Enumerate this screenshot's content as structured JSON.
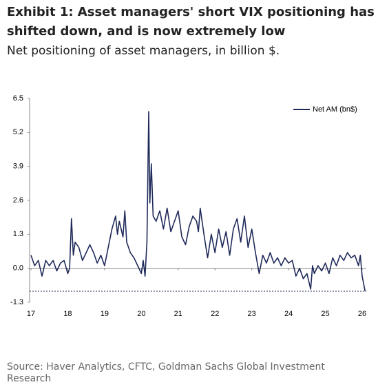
{
  "chart_data": {
    "type": "line",
    "title": "Exhibit 1: Asset managers' short VIX positioning has shifted down, and is now extremely low",
    "subtitle": "Net positioning of asset managers, in billion $.",
    "source": "Source: Haver Analytics, CFTC, Goldman Sachs Global Investment Research",
    "x": [
      2017.0,
      2017.1,
      2017.2,
      2017.3,
      2017.4,
      2017.5,
      2017.6,
      2017.7,
      2017.8,
      2017.9,
      2018.0,
      2018.05,
      2018.1,
      2018.15,
      2018.2,
      2018.3,
      2018.4,
      2018.5,
      2018.6,
      2018.7,
      2018.8,
      2018.9,
      2019.0,
      2019.1,
      2019.2,
      2019.3,
      2019.35,
      2019.4,
      2019.5,
      2019.55,
      2019.6,
      2019.7,
      2019.8,
      2019.9,
      2020.0,
      2020.05,
      2020.1,
      2020.15,
      2020.2,
      2020.23,
      2020.27,
      2020.32,
      2020.4,
      2020.5,
      2020.6,
      2020.7,
      2020.8,
      2020.9,
      2021.0,
      2021.1,
      2021.2,
      2021.3,
      2021.4,
      2021.5,
      2021.55,
      2021.6,
      2021.7,
      2021.8,
      2021.9,
      2022.0,
      2022.1,
      2022.2,
      2022.3,
      2022.4,
      2022.5,
      2022.6,
      2022.7,
      2022.8,
      2022.9,
      2023.0,
      2023.1,
      2023.15,
      2023.2,
      2023.3,
      2023.4,
      2023.5,
      2023.6,
      2023.7,
      2023.8,
      2023.9,
      2024.0,
      2024.1,
      2024.2,
      2024.3,
      2024.4,
      2024.5,
      2024.6,
      2024.65,
      2024.7,
      2024.8,
      2024.9,
      2025.0,
      2025.1,
      2025.2,
      2025.3,
      2025.4,
      2025.5,
      2025.6,
      2025.7,
      2025.8,
      2025.9,
      2025.95,
      2026.0,
      2026.08
    ],
    "series": [
      {
        "name": "Net AM (bn$)",
        "color": "#1f2a5a",
        "values": [
          0.5,
          0.1,
          0.3,
          -0.3,
          0.3,
          0.1,
          0.3,
          -0.1,
          0.2,
          0.3,
          -0.2,
          0.0,
          1.9,
          0.5,
          1.0,
          0.8,
          0.3,
          0.6,
          0.9,
          0.6,
          0.2,
          0.5,
          0.1,
          0.8,
          1.5,
          2.0,
          1.3,
          1.8,
          1.2,
          2.2,
          1.0,
          0.6,
          0.4,
          0.1,
          -0.2,
          0.3,
          -0.3,
          1.0,
          6.0,
          2.5,
          4.0,
          2.0,
          1.8,
          2.2,
          1.5,
          2.3,
          1.4,
          1.8,
          2.2,
          1.2,
          0.9,
          1.6,
          2.0,
          1.8,
          1.4,
          2.3,
          1.3,
          0.4,
          1.3,
          0.6,
          1.5,
          0.8,
          1.4,
          0.5,
          1.5,
          1.9,
          1.0,
          2.0,
          0.8,
          1.5,
          0.6,
          0.2,
          -0.2,
          0.5,
          0.2,
          0.6,
          0.2,
          0.4,
          0.1,
          0.4,
          0.2,
          0.3,
          -0.3,
          0.0,
          -0.4,
          -0.2,
          -0.8,
          0.1,
          -0.2,
          0.1,
          -0.1,
          0.2,
          -0.2,
          0.4,
          0.1,
          0.5,
          0.3,
          0.6,
          0.4,
          0.5,
          0.1,
          0.5,
          -0.3,
          -0.88
        ]
      }
    ],
    "reference_line": -0.88,
    "xlim": [
      2017,
      2026
    ],
    "xticks": [
      {
        "value": 2017,
        "label": "17"
      },
      {
        "value": 2018,
        "label": "18"
      },
      {
        "value": 2019,
        "label": "19"
      },
      {
        "value": 2020,
        "label": "20"
      },
      {
        "value": 2021,
        "label": "21"
      },
      {
        "value": 2022,
        "label": "22"
      },
      {
        "value": 2023,
        "label": "23"
      },
      {
        "value": 2024,
        "label": "24"
      },
      {
        "value": 2025,
        "label": "25"
      },
      {
        "value": 2026,
        "label": "26"
      }
    ],
    "ylim": [
      -1.3,
      6.5
    ],
    "yticks": [
      6.5,
      5.2,
      3.9,
      2.6,
      1.3,
      {
        "value": 0,
        "label": "0.0"
      },
      -1.3
    ],
    "legend": "top-right"
  }
}
